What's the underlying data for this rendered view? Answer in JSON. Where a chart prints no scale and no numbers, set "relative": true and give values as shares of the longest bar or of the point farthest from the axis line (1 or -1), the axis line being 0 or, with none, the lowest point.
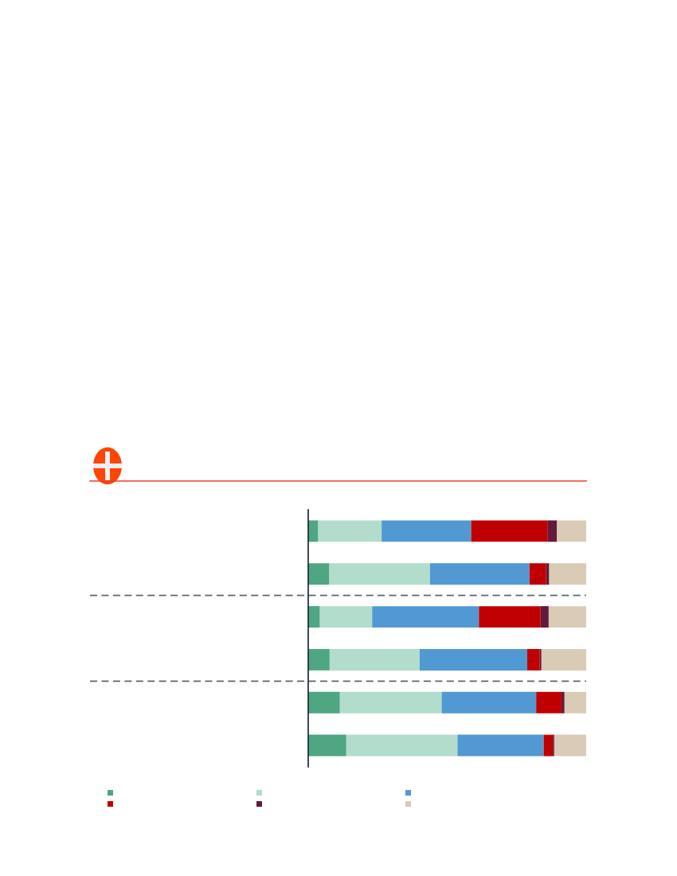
{
  "chart_data": {
    "type": "bar",
    "orientation": "horizontal",
    "stacked": true,
    "relative": true,
    "categories": [
      null,
      null,
      null,
      null,
      null,
      null
    ],
    "series": [
      {
        "color": "#4fa683",
        "values": [
          0.036,
          0.076,
          0.042,
          0.077,
          0.114,
          0.137
        ]
      },
      {
        "color": "#b2dccb",
        "values": [
          0.228,
          0.362,
          0.188,
          0.324,
          0.366,
          0.4
        ]
      },
      {
        "color": "#5299d3",
        "values": [
          0.322,
          0.358,
          0.384,
          0.387,
          0.34,
          0.31
        ]
      },
      {
        "color": "#c00000",
        "values": [
          0.276,
          0.06,
          0.222,
          0.045,
          0.091,
          0.033
        ]
      },
      {
        "color": "#621b3c",
        "values": [
          0.033,
          0.011,
          0.029,
          0.006,
          0.011,
          0.005
        ]
      },
      {
        "color": "#d9cbb6",
        "values": [
          0.105,
          0.133,
          0.135,
          0.161,
          0.078,
          0.115
        ]
      }
    ]
  }
}
